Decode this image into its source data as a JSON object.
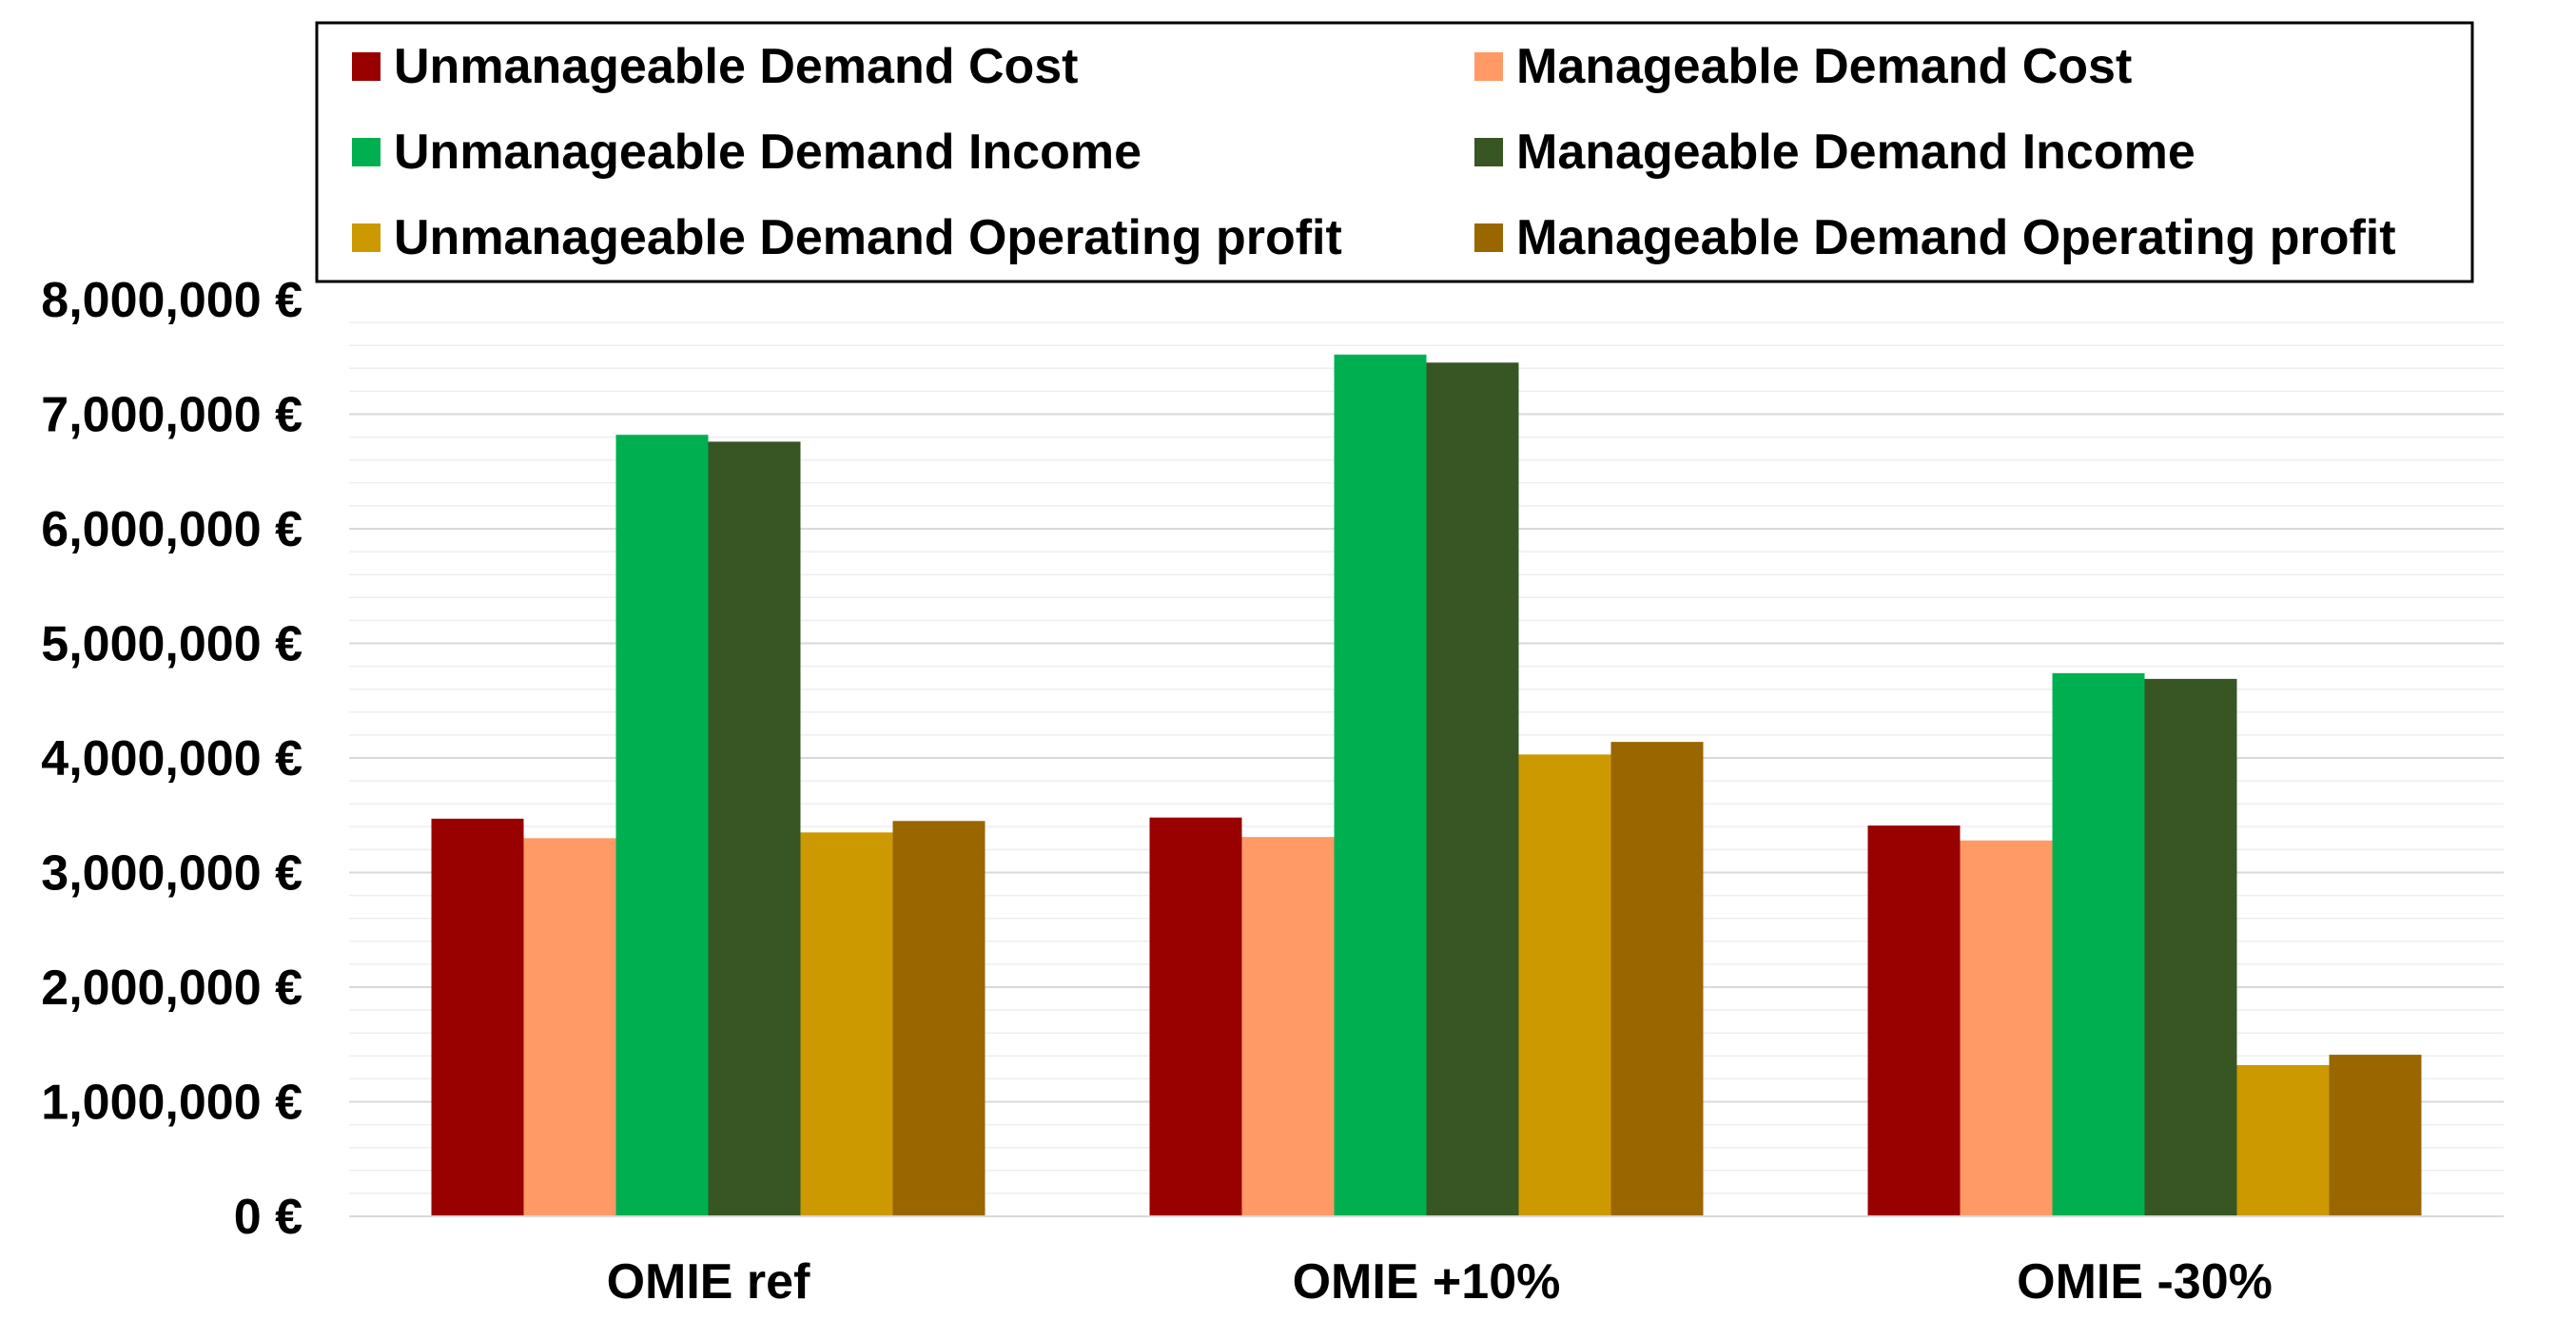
{
  "chart_data": {
    "type": "bar",
    "categories": [
      "OMIE ref",
      "OMIE +10%",
      "OMIE -30%"
    ],
    "series": [
      {
        "name": "Unmanageable Demand Cost",
        "color": "#990000",
        "values": [
          3470000,
          3480000,
          3410000
        ]
      },
      {
        "name": "Manageable Demand Cost",
        "color": "#FF9966",
        "values": [
          3300000,
          3310000,
          3280000
        ]
      },
      {
        "name": "Unmanageable Demand Income",
        "color": "#00B050",
        "values": [
          6820000,
          7520000,
          4740000
        ]
      },
      {
        "name": "Manageable Demand Income",
        "color": "#375623",
        "values": [
          6760000,
          7450000,
          4690000
        ]
      },
      {
        "name": "Unmanageable Demand Operating profit",
        "color": "#CC9900",
        "values": [
          3350000,
          4030000,
          1320000
        ]
      },
      {
        "name": "Manageable Demand Operating profit",
        "color": "#996600",
        "values": [
          3450000,
          4140000,
          1410000
        ]
      }
    ],
    "ylim": [
      0,
      8000000
    ],
    "yticks": [
      "0 €",
      "1,000,000 €",
      "2,000,000 €",
      "3,000,000 €",
      "4,000,000 €",
      "5,000,000 €",
      "6,000,000 €",
      "7,000,000 €",
      "8,000,000 €"
    ],
    "title": "",
    "xlabel": "",
    "ylabel": "",
    "grid": true,
    "legend_position": "top"
  }
}
